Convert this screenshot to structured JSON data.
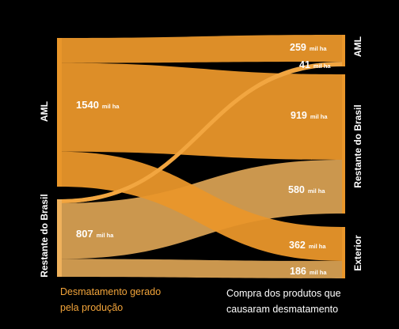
{
  "colors": {
    "background": "#000000",
    "aml": "#e9962a",
    "brasil": "#efb15c",
    "highlight": "#f2a53f",
    "caption_left": "#f2a43a"
  },
  "left_nodes": [
    {
      "id": "aml",
      "name": "AML",
      "value": "1540",
      "unit": "mil ha"
    },
    {
      "id": "brasil",
      "name": "Restante do Brasil",
      "value": "807",
      "unit": "mil ha"
    }
  ],
  "right_groups": [
    {
      "id": "aml",
      "name": "AML"
    },
    {
      "id": "brasil",
      "name": "Restante do Brasil"
    },
    {
      "id": "exterior",
      "name": "Exterior"
    }
  ],
  "flows": [
    {
      "from": "aml",
      "to": "aml",
      "value": "259",
      "unit": "mil ha"
    },
    {
      "from": "brasil",
      "to": "aml",
      "value": "41",
      "unit": "mil ha"
    },
    {
      "from": "aml",
      "to": "brasil",
      "value": "919",
      "unit": "mil ha"
    },
    {
      "from": "brasil",
      "to": "brasil",
      "value": "580",
      "unit": "mil ha"
    },
    {
      "from": "aml",
      "to": "exterior",
      "value": "362",
      "unit": "mil ha"
    },
    {
      "from": "brasil",
      "to": "exterior",
      "value": "186",
      "unit": "mil ha"
    }
  ],
  "captions": {
    "left": [
      "Desmatamento gerado",
      "pela produção"
    ],
    "right": [
      "Compra dos produtos que",
      "causaram desmatamento"
    ]
  }
}
